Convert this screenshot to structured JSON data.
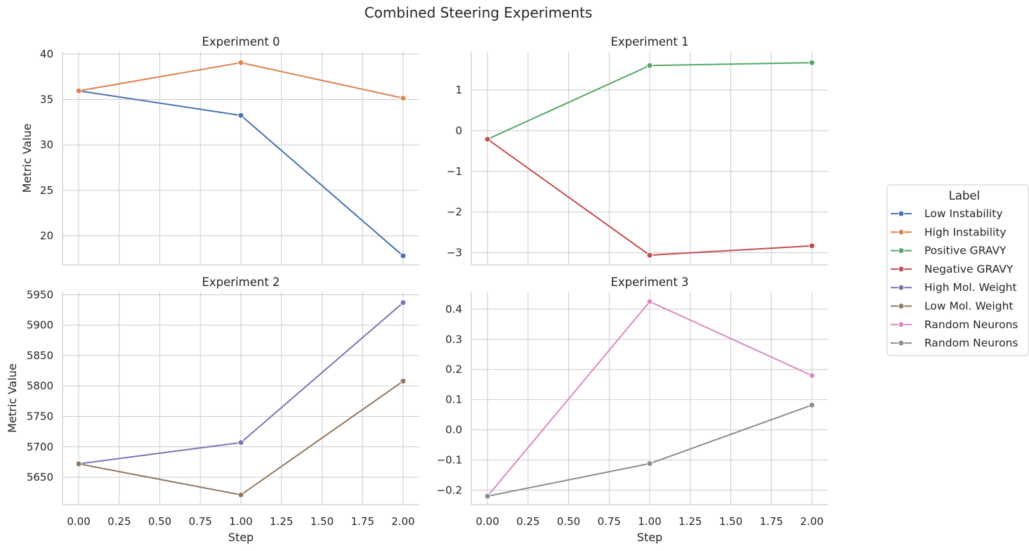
{
  "figure": {
    "title": "Combined Steering Experiments"
  },
  "legend": {
    "title": "Label",
    "placement": "right",
    "entries": [
      {
        "label": "Low Instability",
        "color": "#4c72b0"
      },
      {
        "label": "High Instability",
        "color": "#dd8452"
      },
      {
        "label": "Positive GRAVY",
        "color": "#55a868"
      },
      {
        "label": "Negative GRAVY",
        "color": "#c44e52"
      },
      {
        "label": "High Mol. Weight",
        "color": "#8172b3"
      },
      {
        "label": "Low Mol. Weight",
        "color": "#937860"
      },
      {
        "label": "Random Neurons",
        "color": "#da8bc3"
      },
      {
        "label": "Random Neurons",
        "color": "#8c8c8c"
      }
    ]
  },
  "chart_data": [
    {
      "type": "line",
      "title": "Experiment 0",
      "xlabel": "",
      "ylabel": "Metric Value",
      "xlim": [
        -0.1,
        2.1
      ],
      "ylim": [
        16.8,
        40.3
      ],
      "xticks": [
        "0.00",
        "0.25",
        "0.50",
        "0.75",
        "1.00",
        "1.25",
        "1.50",
        "1.75",
        "2.00"
      ],
      "xticks_visible": false,
      "yticks": [
        {
          "value": 20,
          "label": "20"
        },
        {
          "value": 25,
          "label": "25"
        },
        {
          "value": 30,
          "label": "30"
        },
        {
          "value": 35,
          "label": "35"
        },
        {
          "value": 40,
          "label": "40"
        }
      ],
      "grid": true,
      "series": [
        {
          "name": "Low Instability",
          "color": "#4c72b0",
          "x": [
            0,
            1,
            2
          ],
          "y": [
            35.95,
            33.25,
            17.8
          ]
        },
        {
          "name": "High Instability",
          "color": "#dd8452",
          "x": [
            0,
            1,
            2
          ],
          "y": [
            35.95,
            39.05,
            35.15
          ]
        }
      ]
    },
    {
      "type": "line",
      "title": "Experiment 1",
      "xlabel": "",
      "ylabel": "",
      "xlim": [
        -0.1,
        2.1
      ],
      "ylim": [
        -3.3,
        1.95
      ],
      "xticks": [
        "0.00",
        "0.25",
        "0.50",
        "0.75",
        "1.00",
        "1.25",
        "1.50",
        "1.75",
        "2.00"
      ],
      "xticks_visible": false,
      "yticks": [
        {
          "value": -3,
          "label": "−3"
        },
        {
          "value": -2,
          "label": "−2"
        },
        {
          "value": -1,
          "label": "−1"
        },
        {
          "value": 0,
          "label": "0"
        },
        {
          "value": 1,
          "label": "1"
        }
      ],
      "grid": true,
      "series": [
        {
          "name": "Positive GRAVY",
          "color": "#55a868",
          "x": [
            0,
            1,
            2
          ],
          "y": [
            -0.21,
            1.6,
            1.67
          ]
        },
        {
          "name": "Negative GRAVY",
          "color": "#c44e52",
          "x": [
            0,
            1,
            2
          ],
          "y": [
            -0.21,
            -3.06,
            -2.83
          ]
        }
      ]
    },
    {
      "type": "line",
      "title": "Experiment 2",
      "xlabel": "Step",
      "ylabel": "Metric Value",
      "xlim": [
        -0.1,
        2.1
      ],
      "ylim": [
        5605,
        5955
      ],
      "xticks": [
        "0.00",
        "0.25",
        "0.50",
        "0.75",
        "1.00",
        "1.25",
        "1.50",
        "1.75",
        "2.00"
      ],
      "xticks_visible": true,
      "yticks": [
        {
          "value": 5650,
          "label": "5650"
        },
        {
          "value": 5700,
          "label": "5700"
        },
        {
          "value": 5750,
          "label": "5750"
        },
        {
          "value": 5800,
          "label": "5800"
        },
        {
          "value": 5850,
          "label": "5850"
        },
        {
          "value": 5900,
          "label": "5900"
        },
        {
          "value": 5950,
          "label": "5950"
        }
      ],
      "grid": true,
      "series": [
        {
          "name": "High Mol. Weight",
          "color": "#8172b3",
          "x": [
            0,
            1,
            2
          ],
          "y": [
            5672,
            5707,
            5937
          ]
        },
        {
          "name": "Low Mol. Weight",
          "color": "#937860",
          "x": [
            0,
            1,
            2
          ],
          "y": [
            5672,
            5621,
            5808
          ]
        }
      ]
    },
    {
      "type": "line",
      "title": "Experiment 3",
      "xlabel": "Step",
      "ylabel": "",
      "xlim": [
        -0.1,
        2.1
      ],
      "ylim": [
        -0.248,
        0.458
      ],
      "xticks": [
        "0.00",
        "0.25",
        "0.50",
        "0.75",
        "1.00",
        "1.25",
        "1.50",
        "1.75",
        "2.00"
      ],
      "xticks_visible": true,
      "yticks": [
        {
          "value": -0.2,
          "label": "−0.2"
        },
        {
          "value": -0.1,
          "label": "−0.1"
        },
        {
          "value": 0.0,
          "label": "0.0"
        },
        {
          "value": 0.1,
          "label": "0.1"
        },
        {
          "value": 0.2,
          "label": "0.2"
        },
        {
          "value": 0.3,
          "label": "0.3"
        },
        {
          "value": 0.4,
          "label": "0.4"
        }
      ],
      "grid": true,
      "series": [
        {
          "name": "Random Neurons",
          "color": "#da8bc3",
          "x": [
            0,
            1,
            2
          ],
          "y": [
            -0.22,
            0.425,
            0.18
          ]
        },
        {
          "name": "Random Neurons",
          "color": "#8c8c8c",
          "x": [
            0,
            1,
            2
          ],
          "y": [
            -0.22,
            -0.112,
            0.082
          ]
        }
      ]
    }
  ]
}
